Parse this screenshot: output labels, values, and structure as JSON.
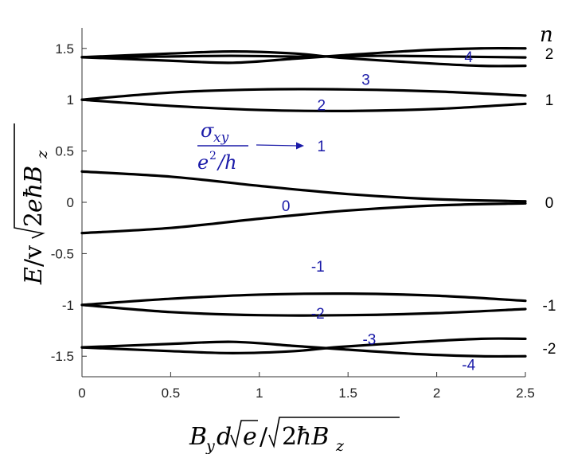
{
  "chart_data": {
    "type": "line",
    "xlabel": "B_y d√e / √(2ħB_z)",
    "ylabel": "E / v√(2eħB_z)",
    "xlim": [
      0,
      2.5
    ],
    "ylim": [
      -1.7,
      1.7
    ],
    "xticks": [
      "0",
      "0.5",
      "1",
      "1.5",
      "2",
      "2.5"
    ],
    "xtick_values": [
      0,
      0.5,
      1,
      1.5,
      2,
      2.5
    ],
    "yticks": [
      "1.5",
      "1",
      "0.5",
      "0",
      "-0.5",
      "-1",
      "-1.5"
    ],
    "ytick_values": [
      1.5,
      1,
      0.5,
      0,
      -0.5,
      -1,
      -1.5
    ],
    "grid": false,
    "series": [
      {
        "x": [
          0,
          0.42,
          0.84,
          1.26,
          1.68,
          2.1,
          2.5
        ],
        "y": [
          1.414,
          1.42,
          1.428,
          1.42,
          1.428,
          1.42,
          1.412
        ]
      },
      {
        "x": [
          0,
          0.5,
          0.85,
          1.2,
          1.45,
          1.9,
          2.25,
          2.5
        ],
        "y": [
          1.414,
          1.38,
          1.36,
          1.4,
          1.43,
          1.48,
          1.5,
          1.5
        ]
      },
      {
        "x": [
          0,
          0.5,
          0.85,
          1.2,
          1.45,
          1.9,
          2.25,
          2.5
        ],
        "y": [
          1.414,
          1.45,
          1.47,
          1.45,
          1.41,
          1.36,
          1.33,
          1.33
        ]
      },
      {
        "x": [
          0,
          0.5,
          1.0,
          1.5,
          2.0,
          2.5
        ],
        "y": [
          1.0,
          1.07,
          1.1,
          1.1,
          1.08,
          1.04
        ]
      },
      {
        "x": [
          0,
          0.5,
          1.0,
          1.5,
          2.0,
          2.5
        ],
        "y": [
          1.0,
          0.94,
          0.9,
          0.89,
          0.91,
          0.96
        ]
      },
      {
        "x": [
          0,
          0.5,
          1.0,
          1.5,
          2.0,
          2.5
        ],
        "y": [
          0.3,
          0.25,
          0.16,
          0.08,
          0.03,
          0.01
        ]
      },
      {
        "x": [
          0,
          0.5,
          1.0,
          1.5,
          2.0,
          2.5
        ],
        "y": [
          -0.3,
          -0.25,
          -0.16,
          -0.08,
          -0.03,
          -0.01
        ]
      },
      {
        "x": [
          0,
          0.5,
          1.0,
          1.5,
          2.0,
          2.5
        ],
        "y": [
          -1.0,
          -0.94,
          -0.9,
          -0.89,
          -0.91,
          -0.96
        ]
      },
      {
        "x": [
          0,
          0.5,
          1.0,
          1.5,
          2.0,
          2.5
        ],
        "y": [
          -1.0,
          -1.07,
          -1.1,
          -1.1,
          -1.08,
          -1.04
        ]
      },
      {
        "x": [
          0,
          0.5,
          0.85,
          1.2,
          1.45,
          1.9,
          2.25,
          2.5
        ],
        "y": [
          -1.414,
          -1.38,
          -1.36,
          -1.4,
          -1.43,
          -1.48,
          -1.5,
          -1.5
        ]
      },
      {
        "x": [
          0,
          0.5,
          0.85,
          1.2,
          1.45,
          1.9,
          2.25,
          2.5
        ],
        "y": [
          -1.414,
          -1.45,
          -1.47,
          -1.45,
          -1.41,
          -1.36,
          -1.33,
          -1.33
        ]
      }
    ],
    "n_header": "n",
    "n_labels": [
      {
        "text": "2",
        "y": 1.45
      },
      {
        "text": "1",
        "y": 1.0
      },
      {
        "text": "0",
        "y": 0.0
      },
      {
        "text": "-1",
        "y": -1.0
      },
      {
        "text": "-2",
        "y": -1.42
      }
    ],
    "annotations": [
      {
        "text": "4",
        "x": 2.18,
        "y": 1.42
      },
      {
        "text": "3",
        "x": 1.6,
        "y": 1.2
      },
      {
        "text": "2",
        "x": 1.35,
        "y": 0.95
      },
      {
        "text": "1",
        "x": 1.35,
        "y": 0.55
      },
      {
        "text": "0",
        "x": 1.15,
        "y": -0.03
      },
      {
        "text": "-1",
        "x": 1.33,
        "y": -0.62
      },
      {
        "text": "-2",
        "x": 1.33,
        "y": -1.08
      },
      {
        "text": "-3",
        "x": 1.62,
        "y": -1.33
      },
      {
        "text": "-4",
        "x": 2.18,
        "y": -1.58
      }
    ],
    "hall_label": {
      "num": "σ",
      "num_sub": "xy",
      "den_e": "e",
      "den_sup": "2",
      "den_rest": "/h"
    },
    "colors": {
      "curve": "#000000",
      "annotation": "#1a1aa8",
      "axis": "#333333"
    }
  }
}
